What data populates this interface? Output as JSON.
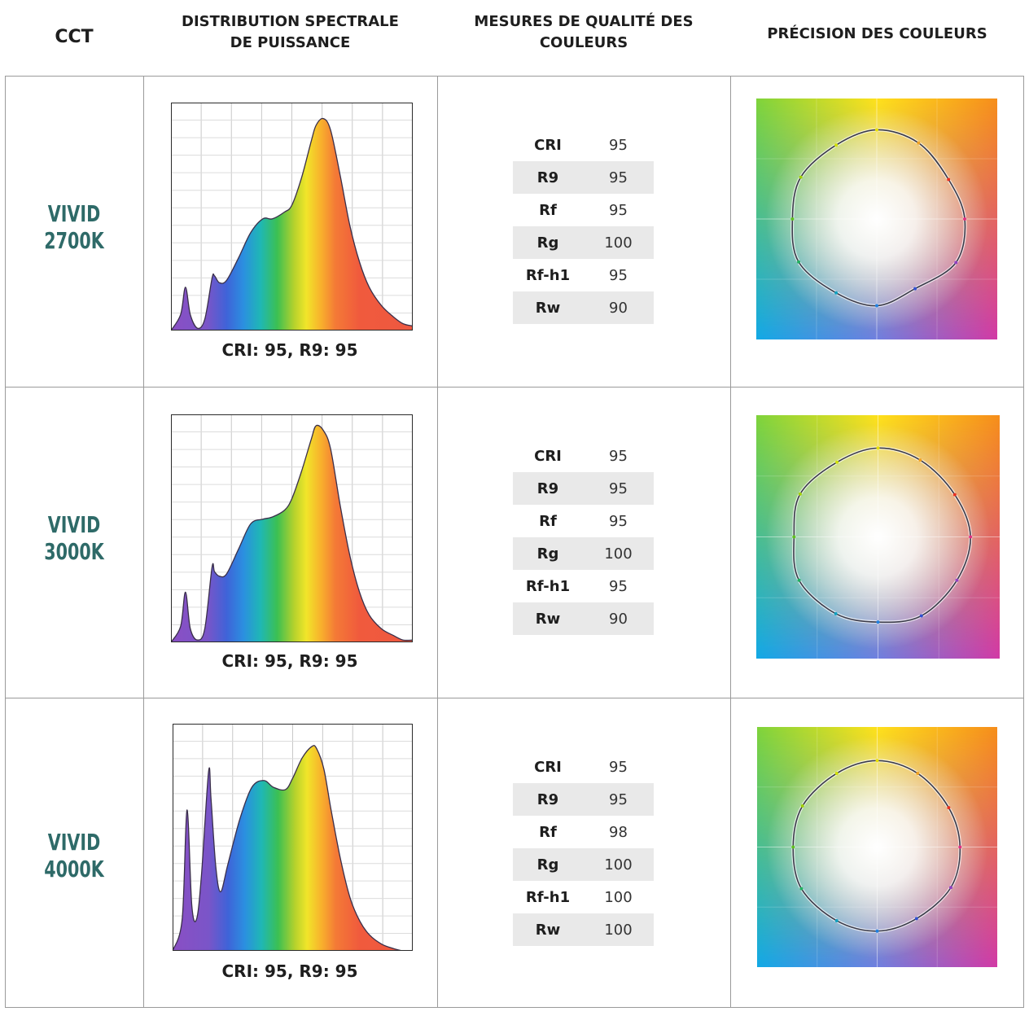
{
  "headers": {
    "cct": "CCT",
    "spd": "DISTRIBUTION SPECTRALE\nDE PUISSANCE",
    "metrics": "MESURES DE QUALITÉ DES COULEURS",
    "accuracy": "PRÉCISION DES COULEURS"
  },
  "rows": [
    {
      "cct_line1": "VIVID",
      "cct_line2": "2700K",
      "spd_caption": "CRI: 95, R9: 95",
      "metrics": [
        {
          "name": "CRI",
          "value": "95"
        },
        {
          "name": "R9",
          "value": "95"
        },
        {
          "name": "Rf",
          "value": "95"
        },
        {
          "name": "Rg",
          "value": "100"
        },
        {
          "name": "Rf-h1",
          "value": "95"
        },
        {
          "name": "Rw",
          "value": "90"
        }
      ]
    },
    {
      "cct_line1": "VIVID",
      "cct_line2": "3000K",
      "spd_caption": "CRI: 95, R9: 95",
      "metrics": [
        {
          "name": "CRI",
          "value": "95"
        },
        {
          "name": "R9",
          "value": "95"
        },
        {
          "name": "Rf",
          "value": "95"
        },
        {
          "name": "Rg",
          "value": "100"
        },
        {
          "name": "Rf-h1",
          "value": "95"
        },
        {
          "name": "Rw",
          "value": "90"
        }
      ]
    },
    {
      "cct_line1": "VIVID",
      "cct_line2": "4000K",
      "spd_caption": "CRI: 95, R9: 95",
      "metrics": [
        {
          "name": "CRI",
          "value": "95"
        },
        {
          "name": "R9",
          "value": "95"
        },
        {
          "name": "Rf",
          "value": "98"
        },
        {
          "name": "Rg",
          "value": "100"
        },
        {
          "name": "Rf-h1",
          "value": "100"
        },
        {
          "name": "Rw",
          "value": "100"
        }
      ]
    }
  ],
  "colors": {
    "accent_label": "#2e6a68",
    "grid_line": "#9a9a9a",
    "table_shade": "#e9e9e9"
  },
  "chart_data": [
    {
      "type": "area",
      "series": [
        {
          "x": [
            0.0,
            0.04,
            0.06,
            0.08,
            0.11,
            0.14,
            0.17,
            0.18,
            0.2,
            0.23,
            0.28,
            0.33,
            0.38,
            0.42,
            0.47,
            0.5,
            0.54,
            0.58,
            0.6,
            0.63,
            0.66,
            0.7,
            0.74,
            0.78,
            0.82,
            0.87,
            0.92,
            0.96,
            1.0
          ],
          "y": [
            0.0,
            0.07,
            0.19,
            0.07,
            0.01,
            0.05,
            0.23,
            0.24,
            0.21,
            0.22,
            0.32,
            0.43,
            0.49,
            0.49,
            0.52,
            0.55,
            0.67,
            0.83,
            0.9,
            0.93,
            0.88,
            0.68,
            0.46,
            0.3,
            0.19,
            0.11,
            0.06,
            0.03,
            0.02
          ]
        }
      ]
    },
    {
      "type": "area",
      "series": [
        {
          "x": [
            0.0,
            0.04,
            0.06,
            0.08,
            0.11,
            0.14,
            0.17,
            0.18,
            0.2,
            0.23,
            0.28,
            0.33,
            0.38,
            0.42,
            0.47,
            0.5,
            0.54,
            0.58,
            0.6,
            0.63,
            0.66,
            0.7,
            0.74,
            0.78,
            0.82,
            0.87,
            0.92,
            0.96,
            1.0
          ],
          "y": [
            0.0,
            0.07,
            0.22,
            0.06,
            0.01,
            0.06,
            0.33,
            0.31,
            0.29,
            0.3,
            0.41,
            0.52,
            0.54,
            0.55,
            0.58,
            0.63,
            0.75,
            0.89,
            0.95,
            0.93,
            0.85,
            0.6,
            0.38,
            0.22,
            0.12,
            0.06,
            0.03,
            0.01,
            0.01
          ]
        }
      ]
    },
    {
      "type": "area",
      "series": [
        {
          "x": [
            0.0,
            0.04,
            0.06,
            0.08,
            0.1,
            0.12,
            0.15,
            0.16,
            0.18,
            0.2,
            0.23,
            0.28,
            0.33,
            0.38,
            0.42,
            0.47,
            0.5,
            0.54,
            0.58,
            0.6,
            0.63,
            0.66,
            0.7,
            0.74,
            0.78,
            0.82,
            0.87,
            0.92,
            0.96,
            1.0
          ],
          "y": [
            0.0,
            0.14,
            0.62,
            0.2,
            0.14,
            0.33,
            0.79,
            0.67,
            0.37,
            0.26,
            0.38,
            0.58,
            0.72,
            0.75,
            0.72,
            0.71,
            0.76,
            0.85,
            0.9,
            0.89,
            0.8,
            0.62,
            0.4,
            0.23,
            0.13,
            0.07,
            0.03,
            0.01,
            0.0,
            0.0
          ]
        }
      ]
    }
  ]
}
